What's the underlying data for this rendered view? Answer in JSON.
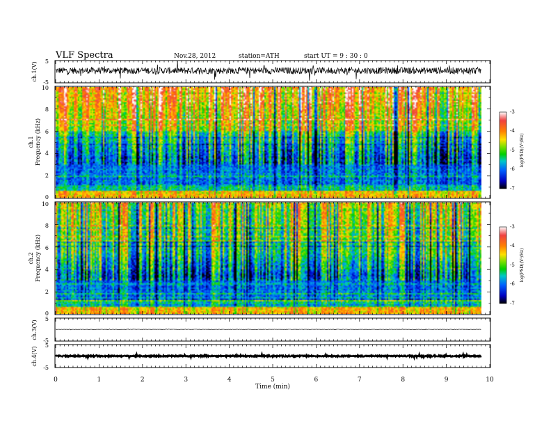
{
  "header": {
    "title": "VLF  Spectra",
    "date": "Nov.28, 2012",
    "station": "station=ATH",
    "start": "start  UT  =   9  : 30 : 0"
  },
  "colorbar": {
    "label": "log(PSD)(V²/Hz)",
    "ticks": [
      "-3",
      "-4",
      "-5",
      "-6",
      "-7"
    ],
    "colors": [
      "#ffffff",
      "#f04040",
      "#ff8000",
      "#ffe000",
      "#80e000",
      "#00d000",
      "#00c8c8",
      "#0060ff",
      "#0000c0",
      "#000000"
    ]
  },
  "chart_data": [
    {
      "type": "line",
      "ylabel": "ch.1(V)",
      "xlim": [
        0,
        10
      ],
      "ylim": [
        -5,
        5
      ],
      "yticks": [
        "5",
        "-5"
      ],
      "baseline": 0.5,
      "noise_amplitude": 1.5
    },
    {
      "type": "heatmap",
      "ylabel": "ch.1\nFrequency (kHz)",
      "xlim": [
        0,
        10
      ],
      "ylim": [
        0,
        10
      ],
      "yticks": [
        "10",
        "8",
        "6",
        "4",
        "2",
        "0"
      ],
      "clim": [
        -7,
        -3
      ],
      "colorbar_label": "log(PSD)(V²/Hz)",
      "data_end_min": 9.8
    },
    {
      "type": "heatmap",
      "ylabel": "ch.2\nFrequency (kHz)",
      "xlim": [
        0,
        10
      ],
      "ylim": [
        0,
        10
      ],
      "yticks": [
        "10",
        "8",
        "6",
        "4",
        "2",
        "0"
      ],
      "clim": [
        -7,
        -3
      ],
      "colorbar_label": "log(PSD)(V²/Hz)",
      "data_end_min": 9.8
    },
    {
      "type": "line",
      "ylabel": "ch.3(V)",
      "xlim": [
        0,
        10
      ],
      "ylim": [
        -5,
        5
      ],
      "yticks": [
        "5",
        "-5"
      ],
      "baseline": 0.1
    },
    {
      "type": "line",
      "ylabel": "ch.4(V)",
      "xlim": [
        0,
        10
      ],
      "ylim": [
        -5,
        5
      ],
      "yticks": [
        "5",
        "-5"
      ],
      "baseline": 0.0
    }
  ],
  "xaxis": {
    "label": "Time  (min)",
    "ticks": [
      "0",
      "1",
      "2",
      "3",
      "4",
      "5",
      "6",
      "7",
      "8",
      "9",
      "10"
    ]
  }
}
